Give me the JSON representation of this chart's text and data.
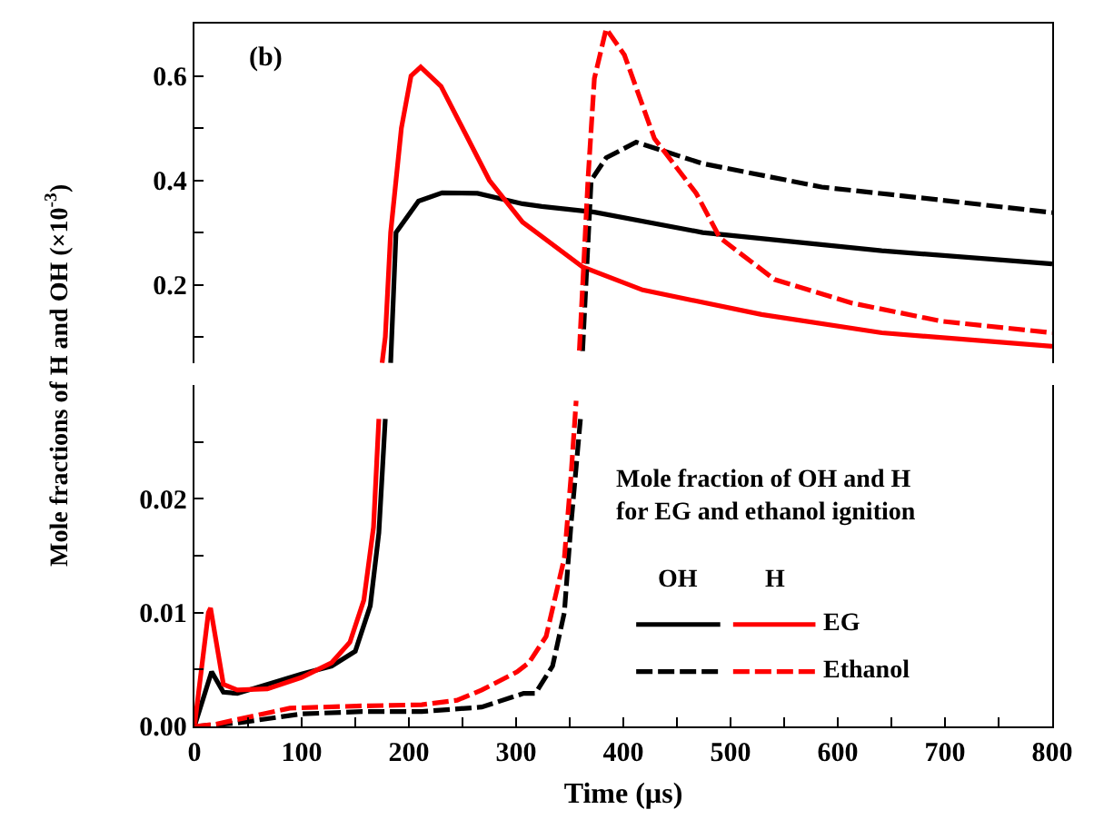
{
  "chart_data": [
    {
      "type": "line",
      "annotations": [
        "(b)"
      ],
      "ylabel": "Mole fractions of H and OH (×10$^{-3}$)",
      "xlim": [
        0,
        800
      ],
      "ylim": [
        0.05,
        0.7
      ],
      "yticks": [
        {
          "value": 0.1,
          "label": null
        },
        0.2,
        {
          "value": 0.3,
          "label": null
        },
        0.4,
        {
          "value": 0.5,
          "label": null
        },
        0.6
      ],
      "tick_labels": "y",
      "series": [
        {
          "color": "#000000",
          "line_style": "solid",
          "x": [
            183,
            188,
            209,
            231,
            264,
            306,
            324,
            373,
            474,
            641,
            800
          ],
          "values": [
            0.05,
            0.3,
            0.36,
            0.376,
            0.375,
            0.355,
            0.35,
            0.339,
            0.3,
            0.265,
            0.24
          ]
        },
        {
          "color": "#ff0000",
          "line_style": "solid",
          "x": [
            175,
            178,
            183,
            193,
            202,
            211,
            230,
            250,
            275,
            306,
            362,
            418,
            529,
            641,
            800
          ],
          "values": [
            0.05,
            0.1,
            0.3,
            0.5,
            0.6,
            0.617,
            0.58,
            0.5,
            0.4,
            0.32,
            0.234,
            0.19,
            0.143,
            0.108,
            0.082
          ]
        },
        {
          "color": "#000000",
          "line_style": "dashed",
          "x": [
            362,
            370,
            384,
            412,
            474,
            585,
            697,
            800
          ],
          "values": [
            0.073,
            0.4,
            0.443,
            0.473,
            0.432,
            0.387,
            0.362,
            0.338
          ]
        },
        {
          "color": "#ff0000",
          "line_style": "dashed",
          "x": [
            359,
            367,
            373,
            384,
            401,
            429,
            468,
            490,
            541,
            613,
            697,
            800
          ],
          "values": [
            0.074,
            0.4,
            0.595,
            0.69,
            0.64,
            0.48,
            0.375,
            0.29,
            0.21,
            0.165,
            0.13,
            0.108
          ]
        }
      ]
    },
    {
      "type": "line",
      "xlabel": "Time (µs)",
      "legend_title": "Mole fraction of OH and H\nfor EG and ethanol ignition",
      "annotations": [
        "OH",
        "H"
      ],
      "legend": "bottom right",
      "xlim": [
        0,
        800
      ],
      "xticks": [
        0,
        {
          "value": 50,
          "label": null
        },
        100,
        {
          "value": 150,
          "label": null
        },
        200,
        {
          "value": 250,
          "label": null
        },
        300,
        {
          "value": 350,
          "label": null
        },
        400,
        {
          "value": 450,
          "label": null
        },
        500,
        {
          "value": 550,
          "label": null
        },
        600,
        {
          "value": 650,
          "label": null
        },
        700,
        {
          "value": 750,
          "label": null
        },
        800
      ],
      "ylim": [
        0,
        0.03
      ],
      "yticks": [
        {
          "value": 0,
          "label": "0.00"
        },
        {
          "value": 0.005,
          "label": null
        },
        {
          "value": 0.01,
          "label": "0.01"
        },
        {
          "value": 0.015,
          "label": null
        },
        {
          "value": 0.02,
          "label": "0.02"
        },
        {
          "value": 0.025,
          "label": null
        }
      ],
      "series": [
        {
          "color": "#000000",
          "line_style": "solid",
          "x": [
            0,
            16,
            27,
            40,
            100,
            128,
            150,
            164,
            172,
            178
          ],
          "values": [
            0,
            0.0048,
            0.003,
            0.0029,
            0.0046,
            0.0053,
            0.0066,
            0.0106,
            0.017,
            0.027
          ]
        },
        {
          "name": "EG",
          "color": "#ff0000",
          "line_style": "solid",
          "x": [
            0,
            13,
            15,
            27,
            40,
            68,
            100,
            128,
            145,
            158,
            167,
            172
          ],
          "values": [
            0,
            0.01,
            0.0104,
            0.0037,
            0.0032,
            0.0033,
            0.0043,
            0.0056,
            0.0074,
            0.0111,
            0.0175,
            0.027
          ]
        },
        {
          "color": "#000000",
          "line_style": "dashed",
          "x": [
            0,
            40,
            100,
            156,
            212,
            268,
            307,
            318,
            334,
            345,
            351,
            360
          ],
          "values": [
            0,
            0.0003,
            0.0011,
            0.0013,
            0.0013,
            0.0017,
            0.0029,
            0.0029,
            0.0053,
            0.01,
            0.0175,
            0.027
          ]
        },
        {
          "name": "Ethanol",
          "color": "#ff0000",
          "line_style": "dashed",
          "x": [
            0,
            20,
            89,
            156,
            212,
            245,
            268,
            301,
            312,
            328,
            345,
            351,
            356
          ],
          "values": [
            0,
            0.0002,
            0.0016,
            0.0018,
            0.0019,
            0.0023,
            0.0032,
            0.0048,
            0.0056,
            0.0079,
            0.0148,
            0.0217,
            0.0286
          ]
        }
      ]
    }
  ]
}
